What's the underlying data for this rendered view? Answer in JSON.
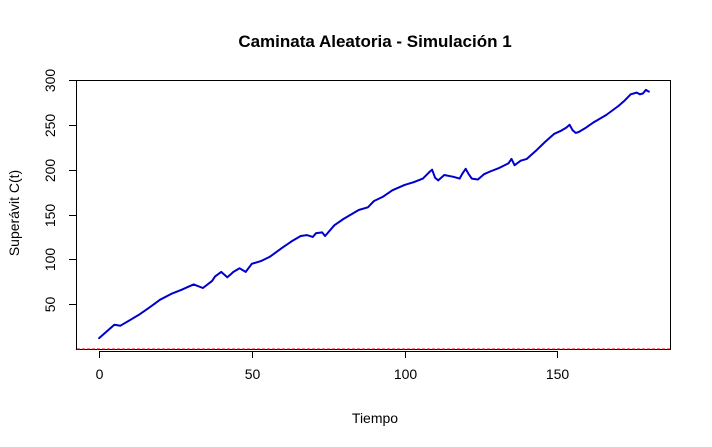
{
  "chart_data": {
    "type": "line",
    "title": "Caminata Aleatoria - Simulación 1",
    "xlabel": "Tiempo",
    "ylabel": "Superávit C(t)",
    "xlim": [
      0,
      180
    ],
    "ylim": [
      0,
      300
    ],
    "xticks": [
      0,
      50,
      100,
      150
    ],
    "yticks": [
      50,
      100,
      150,
      200,
      250,
      300
    ],
    "grid": false,
    "colors": {
      "series": "#0000CD",
      "baseline": "#FF0000",
      "axis": "#000000"
    },
    "series": [
      {
        "x": [
          0,
          2,
          4,
          5,
          7,
          10,
          13,
          16,
          18,
          20,
          24,
          27,
          29,
          31,
          34,
          37,
          38,
          40,
          42,
          43,
          44,
          46,
          48,
          50,
          53,
          56,
          60,
          63,
          66,
          68,
          70,
          71,
          73,
          74,
          77,
          80,
          85,
          88,
          90,
          93,
          96,
          100,
          103,
          106,
          108,
          109,
          110,
          111,
          113,
          116,
          118,
          119,
          120,
          121,
          122,
          124,
          126,
          128,
          131,
          134,
          135,
          136,
          138,
          140,
          143,
          146,
          149,
          151,
          153,
          154,
          155,
          156,
          157,
          159,
          162,
          166,
          170,
          172,
          174,
          176,
          177,
          178,
          179,
          180
        ],
        "values": [
          12,
          18,
          24,
          27,
          26,
          32,
          38,
          45,
          50,
          55,
          62,
          66,
          69,
          72,
          68,
          76,
          81,
          86,
          80,
          83,
          86,
          90,
          86,
          95,
          98,
          103,
          113,
          120,
          126,
          127,
          125,
          129,
          130,
          126,
          138,
          145,
          155,
          158,
          165,
          170,
          177,
          183,
          186,
          190,
          197,
          200,
          191,
          188,
          194,
          192,
          190,
          196,
          201,
          195,
          190,
          189,
          195,
          198,
          202,
          207,
          212,
          205,
          210,
          212,
          221,
          231,
          240,
          243,
          247,
          250,
          244,
          241,
          242,
          246,
          253,
          261,
          271,
          277,
          284,
          286,
          284,
          285,
          289,
          287
        ]
      }
    ],
    "baseline": 0
  }
}
